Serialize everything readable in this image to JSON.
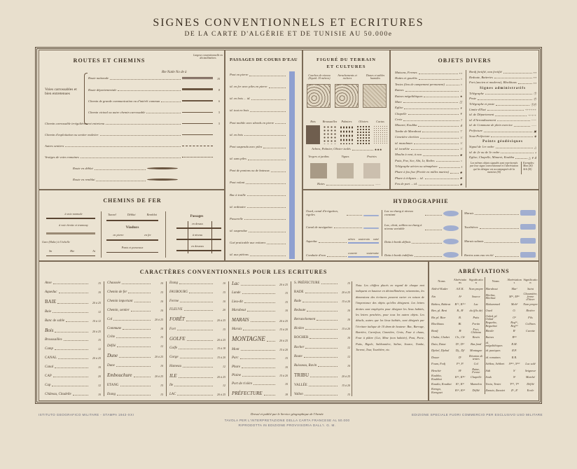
{
  "header": {
    "title": "SIGNES CONVENTIONNELS ET ECRITURES",
    "subtitle": "DE LA CARTE D'ALGÉRIE ET DE TUNISIE AU 50.000e"
  },
  "routes": {
    "title": "ROUTES ET CHEMINS",
    "width_header": "Largeur conventionnelle en décimillimètres",
    "group_label": "Voies carrossables et bien entretenues",
    "route_sample": "Rte Natle No de à",
    "items": [
      {
        "label": "Route nationale",
        "val": "10"
      },
      {
        "label": "Route départementale",
        "val": "8"
      },
      {
        "label": "Chemin de grande communication ou d'intérêt commun",
        "val": "6"
      },
      {
        "label": "Chemin vicinal ou autre chemin carrossable",
        "val": "5"
      },
      {
        "label": "Chemin carrossable irrégulièrement entretenu",
        "val": "5"
      },
      {
        "label": "Chemin d'exploitation ou sentier muletier",
        "val": ""
      },
      {
        "label": "Autres sentiers",
        "val": ""
      },
      {
        "label": "Vestiges de voies romaines",
        "val": ""
      },
      {
        "label": "Route en déblai",
        "val": ""
      },
      {
        "label": "Route en remblai",
        "val": ""
      }
    ]
  },
  "passages": {
    "title": "PASSAGES DE COURS D'EAU",
    "items": [
      "Pont en pierre",
      "id. en fer avec piles en pierre",
      "id. en bois ... id.",
      "id. tout en bois",
      "Pont mobile avec abords en pierre",
      "id. en bois",
      "Pont suspendu avec piles",
      "id. sans piles",
      "Pont de pontons ou de bateaux",
      "Pont volant",
      "Bac à traille",
      "id. ordinaire",
      "Passerelle",
      "id. suspendue",
      "Gué praticable aux voitures",
      "id. aux piétons"
    ]
  },
  "terrain": {
    "title": "FIGURÉ DU TERRAIN",
    "title2": "ET CULTURES",
    "relief": [
      "Courbes de niveau (Equid. 10 mètres)",
      "Arrachements et rochers",
      "Dunes et sables humides"
    ],
    "vegetation": [
      "Bois",
      "Broussailles",
      "Palmiers",
      "Oliviers",
      "Cactus"
    ],
    "isolated": "Arbres, Palmier, Olivier isolés",
    "cultures": [
      "Vergers et jardins",
      "Vignes",
      "Prairies"
    ],
    "hedges": "Haies"
  },
  "objets": {
    "title": "OBJETS DIVERS",
    "left": [
      "Maisons, Fermes",
      "Huttes et gourbis",
      "Tentes (lieu de campement permanent)",
      "Ruines",
      "Ruines mégalithiques",
      "Mare",
      "Eglise",
      "Chapelle",
      "Croix",
      "Minaret, Koubba",
      "Tombe de Marabout",
      "Cimetière chrétien",
      "id. musulman",
      "id. israélite",
      "Moulin à vent, à eau",
      "Puits, Fne, Sce, Abt, Lr, Redirs",
      "Télégraphe aérien ou sémaphore",
      "Phare à feu fixe (Portée en milles marins)",
      "Phare à éclipses ... id.",
      "Feu de port ... id."
    ],
    "right_top": [
      "Bordj fortifié, non fortifié",
      "Redoute, Batteries",
      "Fort (ancien et moderne), Blockhaus"
    ],
    "admin_title": "Signes administratifs",
    "admin": [
      "Télégraphe",
      "Poste",
      "Télégraphe et poste",
      "Limite d'Etat",
      "id. de Département",
      "id. d'Arrondissement",
      "id. de Commune de plein exercice",
      "Préfecture",
      "Sous-Préfecture"
    ],
    "geo_title": "Points géodésiques",
    "geo": [
      "Signal de 1er ordre",
      "id. de 2e ou de 3e ordre",
      "Eglise, Chapelle, Minaret, Koubba"
    ],
    "note": "Les mêmes objets signalés sont représentés par leur signe conventionnel et l'abréviation qui les désigne est accompagnée de la mention (Sl)",
    "examples_label": "Exemples:",
    "examples": [
      "Mon (Sl)",
      "Arb (Sl)"
    ]
  },
  "railways": {
    "title": "CHEMINS DE FER",
    "items": [
      "à voie normale",
      "à voie étroite et tramway",
      "Gare (Halte) à l'échelle"
    ],
    "stations": [
      "Sn",
      "Hte",
      "At"
    ],
    "tunnel": [
      "Tunnel",
      "Déblai",
      "Remblai"
    ],
    "viaducts": "Viaducs",
    "viaduct_types": [
      "en pierre",
      "en fer"
    ],
    "bridges": "Ponts et ponceaux",
    "passages_title": "Passages",
    "passages": [
      "en dessus",
      "à niveau",
      "en dessous"
    ]
  },
  "hydro": {
    "title": "HYDROGRAPHIE",
    "col1": [
      "Oued, canal d'irrigation, rigoles",
      "Canal de navigation",
      "Aqueduc",
      "Conduite d'eau"
    ],
    "aqueduct_types": [
      "aérien",
      "souterrain",
      "ruiné"
    ],
    "pipe_types": [
      "couverte",
      "souterraine"
    ],
    "col2": [
      "Lac ou étang à niveau constant",
      "Lac, chott, sebkra ou étang à niveau variable",
      "Daïa à bords définis",
      "Daïa à bords indéfinis"
    ],
    "col3": [
      "Marais",
      "Tourbières",
      "Marais salants",
      "Ravins sans eau en été"
    ]
  },
  "ecritures": {
    "title": "CARACTÈRES CONVENTIONNELS POUR LES ECRITURES",
    "columns": [
      [
        {
          "t": "Anse",
          "s": "15"
        },
        {
          "t": "Aqueduc",
          "s": "10"
        },
        {
          "t": "BAIE",
          "s": "20 à 25",
          "c": "mid"
        },
        {
          "t": "Baie",
          "s": "12"
        },
        {
          "t": "Banc de sable",
          "s": "10 à 12"
        },
        {
          "t": "Bois",
          "s": "20 à 25",
          "c": "mid"
        },
        {
          "t": "Broussailles",
          "s": "15"
        },
        {
          "t": "Camp",
          "s": "12"
        },
        {
          "t": "CANAL",
          "s": "20 à 25"
        },
        {
          "t": "Canal",
          "s": "10"
        },
        {
          "t": "CAP",
          "s": "20"
        },
        {
          "t": "Cap",
          "s": "12"
        },
        {
          "t": "Château, Citadelle",
          "s": "10"
        }
      ],
      [
        {
          "t": "Chaussée",
          "s": "10"
        },
        {
          "t": "Chemin de fer",
          "s": "15"
        },
        {
          "t": "Chemin important",
          "s": "10"
        },
        {
          "t": "Chemin, sentier",
          "s": "10"
        },
        {
          "t": "Col",
          "s": "20 à 25"
        },
        {
          "t": "Commune",
          "s": "18"
        },
        {
          "t": "Crête",
          "s": "15"
        },
        {
          "t": "Défilé",
          "s": "12"
        },
        {
          "t": "Dune",
          "s": "20 à 25",
          "c": "mid"
        },
        {
          "t": "Dune",
          "s": "10"
        },
        {
          "t": "Embouchure",
          "s": "20 à 25",
          "c": "mid"
        },
        {
          "t": "ETANG",
          "s": "15"
        },
        {
          "t": "Etang",
          "s": "15"
        }
      ],
      [
        {
          "t": "Etang",
          "s": "10"
        },
        {
          "t": "FAUBOURG",
          "s": "15"
        },
        {
          "t": "Ferme",
          "s": "10"
        },
        {
          "t": "FLEUVE",
          "s": "20"
        },
        {
          "t": "FORÊT",
          "s": "20 à 25",
          "c": "mid"
        },
        {
          "t": "Fort",
          "s": "15"
        },
        {
          "t": "GOLFE",
          "s": "20 à 25",
          "c": "mid"
        },
        {
          "t": "Golfe",
          "s": "15 à 18"
        },
        {
          "t": "Gorge",
          "s": "15 à 20"
        },
        {
          "t": "Hameau",
          "s": "12"
        },
        {
          "t": "ILE",
          "s": "20 à 25",
          "c": "mid"
        },
        {
          "t": "Ile",
          "s": "12"
        },
        {
          "t": "LAC",
          "s": "20 à 25"
        }
      ],
      [
        {
          "t": "Lac",
          "s": "20 à 25",
          "c": "mid"
        },
        {
          "t": "Lande",
          "s": "15"
        },
        {
          "t": "Lieu-dit",
          "s": "15"
        },
        {
          "t": "Marabout",
          "s": "10"
        },
        {
          "t": "MARAIS",
          "s": "20 à 25",
          "c": "mid"
        },
        {
          "t": "Marais",
          "s": "15 à 20"
        },
        {
          "t": "MONTAGNE",
          "s": "20 à 25",
          "c": "big"
        },
        {
          "t": "Mont",
          "s": "15 à 20"
        },
        {
          "t": "Parc",
          "s": "15"
        },
        {
          "t": "Phare",
          "s": "10"
        },
        {
          "t": "Plaine",
          "s": "15 à 20"
        },
        {
          "t": "Port de rivière",
          "s": "10"
        },
        {
          "t": "PRÉFECTURE",
          "s": "18",
          "c": "mid"
        }
      ],
      [
        {
          "t": "S. PRÉFECTURE",
          "s": "15"
        },
        {
          "t": "RADE",
          "s": "20 à 25"
        },
        {
          "t": "Rade",
          "s": "15 à 20"
        },
        {
          "t": "Redoute",
          "s": "10"
        },
        {
          "t": "Retranchement",
          "s": "10"
        },
        {
          "t": "Rivière",
          "s": "15 à 20"
        },
        {
          "t": "ROCHER",
          "s": "10"
        },
        {
          "t": "Rocher",
          "s": "12"
        },
        {
          "t": "Route",
          "s": "12"
        },
        {
          "t": "Ruisseau, Ravin",
          "s": "10"
        },
        {
          "t": "TRIBU",
          "s": "20 à 25",
          "c": "mid"
        },
        {
          "t": "VALLÉE",
          "s": "15 à 20"
        },
        {
          "t": "Vallon",
          "s": "15"
        }
      ]
    ],
    "note": "Nota. Les chiffres placés en regard de chaque mot indiquent en hauteur en décimillimètres; néanmoins, les dimensions des écritures peuvent varier en raison de l'importance des objets qu'elles désignent. Les lettres droites sont employées pour désigner les lieux habités, les lettres penchées, pour tous les autres objets. Les détails, autres que les lieux habités, sont désignés par l'écriture italique de 10 dmm de hauteur: Bac, Barrage, Barrière, Carrefour, Cimetière, Croix, Four à chaux, Four à plâtre (Cui, Mine (non habitée), Pont, Porte, Puits, Rigole, Sablonnière, Saline, Source, Tombe, Torrent, Tour, Tourbière, etc."
  },
  "abbr": {
    "title": "ABRÉVIATIONS",
    "headers": [
      "Noms",
      "Abréviations",
      "Signification",
      "Noms",
      "Abréviations",
      "Signification"
    ],
    "rows": [
      [
        "Abd-el-Kader",
        "A.E.K.",
        "Nom propre",
        "Marabout",
        "Marᵗ",
        "Saint"
      ],
      [
        "Aïn",
        "Aⁿ",
        "Source",
        "Mechta, Mechtat",
        "Mᵗᵃ, Mᵗᵃᵗ",
        "Chaumière, ferme d'hiver"
      ],
      [
        "Bahira, Bahirat",
        "Bⁱʳᵃ, Bⁱʳᵃᵗ",
        "Lac",
        "Mohammed",
        "Mohᵈ",
        "Nom propre"
      ],
      [
        "Ben, pl. Beni",
        "B., Bⁱ",
        "du (fils de)",
        "Oued",
        "O.",
        "Rivière"
      ],
      [
        "Bir, pl. Biar",
        "B.",
        "Puits",
        "Ouled, pl. Oulad",
        "Oᵈ",
        "Fils"
      ],
      [
        "Blockhaus",
        "Bl.",
        "Fortin",
        "Regueba, Reguebat",
        "Regᵇᵃ, Regᵇᵃᵗ",
        "Collines"
      ],
      [
        "Bordj",
        "Bʲ",
        "Fort, Château",
        "Rhedir",
        "Rʳ",
        "Cuvette"
      ],
      [
        "Chaba, Chabet",
        "Ch., Chᵗ",
        "Ravin",
        "Ruines",
        "Rⁿᵉˢ",
        ""
      ],
      [
        "Daïa, Daiat",
        "Dᵃ, Dᵃᵗ",
        "Bas fond",
        "id. mégalithiques",
        "R.M.",
        ""
      ],
      [
        "Djebel, Djebal",
        "Dj., Djˡ",
        "Montagne",
        "id. puniques",
        "R.P.",
        ""
      ],
      [
        "Douar",
        "Dʳ",
        "Réunion de tentes",
        "id. romaines",
        "R.R.",
        ""
      ],
      [
        "Foum, Fedj",
        "Fᵐ, Fʲ",
        "Col",
        "Sebkra, Sebkret",
        "Sᵇᵏʳᵃ, Sᵇᵏʳᵗ",
        "Lac salé"
      ],
      [
        "Henchir",
        "Hʳ",
        "Ruine, Ferme",
        "Sidi",
        "Sⁱ",
        "Seigneur"
      ],
      [
        "Koubba, Koubbat",
        "Kᵇᵃ, Kᵇᵃᵗ",
        "Chapelle",
        "Souk",
        "Sᵏ",
        "Marché"
      ],
      [
        "Koudia, Koudiat",
        "Kᵃ, Kᵃᵗ",
        "Mamelon",
        "Tenia, Teniet",
        "Tⁿⁱᵃ, Tⁿᵗ",
        "Défilé"
      ],
      [
        "Krenga, Krenguet",
        "Kᵍᵃ, Kᵍᵘᵗ",
        "Défilé",
        "Zaouia, Zaouiet",
        "Zᵃ, Zᵗ",
        "Ecole"
      ]
    ]
  },
  "footer": {
    "left": "ISTITUTO GEOGRAFICO MILITARE - STAMPA 1942-XXI",
    "credit": "Dressé et publié par le Service géographique de l'Armée",
    "center1": "TAVOLA PER L'INTERPRETAZIONE DELLA CARTA FRANCESE AL 50.000",
    "center2": "RIPRODOTTA IN EDIZIONE PROVVISORIA DALL'I. G. M.",
    "right": "EDIZIONE SPECIALE FUORI COMMERCIO PER ESCLUSIVO USO MILITARE"
  },
  "colors": {
    "paper": "#e8dfcd",
    "ink": "#4a3a2a",
    "water": "#8fa0d0"
  }
}
